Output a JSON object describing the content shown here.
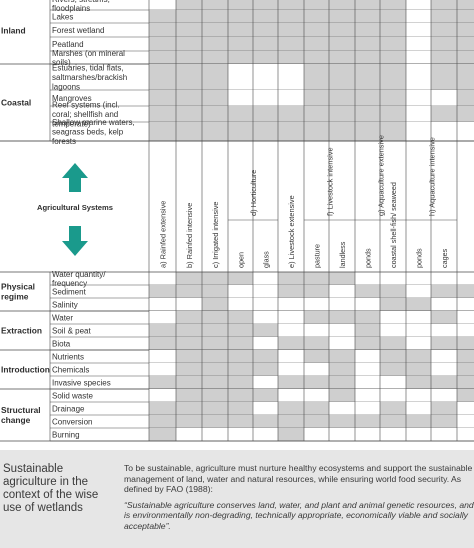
{
  "wetland_groups": [
    {
      "label": "Inland",
      "rows": [
        {
          "label": "Rivers, streams, floodplains",
          "cells": [
            0,
            1,
            1,
            1,
            1,
            1,
            1,
            1,
            1,
            1,
            0,
            1,
            1
          ]
        },
        {
          "label": "Lakes",
          "cells": [
            1,
            1,
            1,
            1,
            1,
            1,
            1,
            1,
            1,
            1,
            0,
            1,
            1
          ]
        },
        {
          "label": "Forest wetland",
          "cells": [
            1,
            1,
            1,
            1,
            1,
            1,
            1,
            1,
            1,
            1,
            0,
            1,
            1
          ]
        },
        {
          "label": "Peatland",
          "cells": [
            1,
            1,
            1,
            1,
            1,
            1,
            1,
            1,
            1,
            1,
            0,
            1,
            1
          ]
        },
        {
          "label": "Marshes (on mineral soils)",
          "cells": [
            1,
            1,
            1,
            1,
            1,
            1,
            1,
            1,
            1,
            1,
            0,
            1,
            1
          ]
        }
      ]
    },
    {
      "label": "Coastal",
      "rows": [
        {
          "label": "Estuaries, tidal flats, saltmarshes/brackish lagoons",
          "cells": [
            1,
            1,
            1,
            0,
            0,
            0,
            1,
            1,
            1,
            1,
            0,
            1,
            1
          ]
        },
        {
          "label": "Mangroves",
          "cells": [
            1,
            1,
            1,
            0,
            0,
            0,
            1,
            1,
            1,
            1,
            0,
            0,
            1
          ]
        },
        {
          "label": "Reef systems (incl. coral; shellfish and temperate)",
          "cells": [
            1,
            1,
            1,
            1,
            1,
            1,
            1,
            1,
            1,
            1,
            0,
            1,
            1
          ]
        },
        {
          "label": "Shallow marine waters, seagrass beds, kelp forests",
          "cells": [
            1,
            1,
            1,
            1,
            1,
            1,
            1,
            1,
            1,
            1,
            0,
            0,
            0
          ]
        }
      ]
    }
  ],
  "arrow_color": "#1a9a8c",
  "center_label": "Agricultural Systems",
  "systems": [
    {
      "label": "a) Rainfed extensive",
      "span": 1
    },
    {
      "label": "b) Rainfed intensive",
      "span": 1
    },
    {
      "label": "c) Irrigated intensive",
      "span": 1
    },
    {
      "label": "d) Horticulture",
      "span": 2,
      "subs": [
        "open",
        "glass"
      ]
    },
    {
      "label": "e) Livestock extensive",
      "span": 1
    },
    {
      "label": "f) Livestock intensive",
      "span": 2,
      "subs": [
        "pasture",
        "landless"
      ]
    },
    {
      "label": "g) Aquaculture extensive",
      "span": 2,
      "subs": [
        "ponds",
        "coastal shell-fish/ seaweed"
      ]
    },
    {
      "label": "h) Aquaculture intensive",
      "span": 2,
      "subs": [
        "ponds",
        "cages"
      ]
    }
  ],
  "impact_groups": [
    {
      "label": "Physical regime",
      "rows": [
        {
          "label": "Water quantity/ frequency",
          "cells": [
            0,
            1,
            1,
            1,
            0,
            1,
            1,
            1,
            0,
            0,
            0,
            0,
            0
          ]
        },
        {
          "label": "Sediment",
          "cells": [
            1,
            1,
            1,
            0,
            0,
            1,
            1,
            0,
            1,
            1,
            0,
            1,
            1
          ]
        },
        {
          "label": "Salinity",
          "cells": [
            0,
            0,
            1,
            0,
            0,
            0,
            0,
            0,
            0,
            1,
            1,
            0,
            0
          ]
        }
      ]
    },
    {
      "label": "Extraction",
      "rows": [
        {
          "label": "Water",
          "cells": [
            0,
            1,
            1,
            1,
            0,
            0,
            1,
            1,
            1,
            0,
            0,
            1,
            0
          ]
        },
        {
          "label": "Soil & peat",
          "cells": [
            1,
            1,
            1,
            1,
            1,
            0,
            0,
            0,
            1,
            0,
            0,
            0,
            0
          ]
        },
        {
          "label": "Biota",
          "cells": [
            1,
            1,
            1,
            1,
            0,
            1,
            1,
            0,
            1,
            1,
            0,
            1,
            1
          ]
        }
      ]
    },
    {
      "label": "Introduction",
      "rows": [
        {
          "label": "Nutrients",
          "cells": [
            0,
            1,
            1,
            1,
            1,
            0,
            1,
            1,
            0,
            1,
            1,
            0,
            1
          ]
        },
        {
          "label": "Chemicals",
          "cells": [
            0,
            1,
            1,
            1,
            1,
            0,
            0,
            1,
            0,
            1,
            1,
            0,
            1
          ]
        },
        {
          "label": "Invasive species",
          "cells": [
            1,
            1,
            1,
            1,
            0,
            1,
            1,
            1,
            0,
            0,
            1,
            1,
            1
          ]
        }
      ]
    },
    {
      "label": "Structural change",
      "rows": [
        {
          "label": "Solid waste",
          "cells": [
            0,
            1,
            1,
            1,
            1,
            0,
            0,
            1,
            0,
            0,
            0,
            0,
            1
          ]
        },
        {
          "label": "Drainage",
          "cells": [
            1,
            1,
            1,
            1,
            0,
            1,
            1,
            0,
            0,
            1,
            0,
            1,
            0
          ]
        },
        {
          "label": "Conversion",
          "cells": [
            1,
            1,
            1,
            1,
            1,
            1,
            1,
            1,
            1,
            1,
            1,
            1,
            0
          ]
        },
        {
          "label": "Burning",
          "cells": [
            1,
            0,
            0,
            0,
            0,
            1,
            0,
            0,
            0,
            0,
            0,
            0,
            0
          ]
        }
      ]
    }
  ],
  "footer": {
    "heading": "Sustainable agriculture in the context of the wise use of wetlands",
    "text": "To be sustainable, agriculture must nurture healthy ecosystems and support the sustainable management of land, water and natural resources, while ensuring world food security. As defined by FAO (1988):",
    "quote": "“Sustainable agriculture conserves land, water, and plant and animal genetic resources, and is environmentally non-degrading, technically appropriate, economically viable and socially acceptable”."
  },
  "colors": {
    "cell_on": "#cfcfcf",
    "cell_off": "#ffffff",
    "line": "#4a4a4a",
    "text": "#333333"
  }
}
